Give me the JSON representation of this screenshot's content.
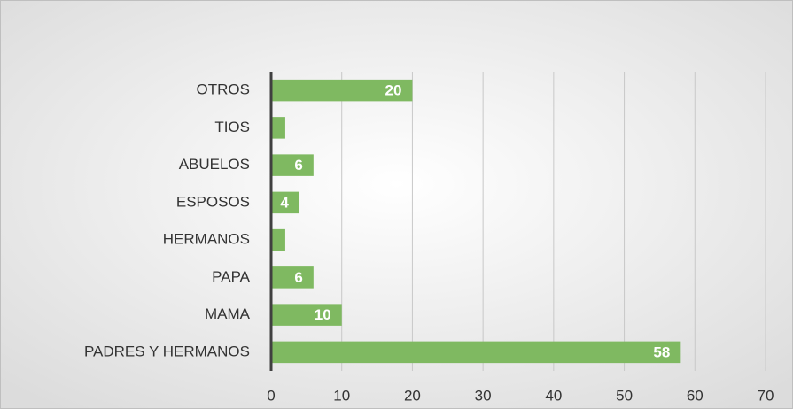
{
  "chart_data": {
    "type": "hbar",
    "categories": [
      "OTROS",
      "TIOS",
      "ABUELOS",
      "ESPOSOS",
      "HERMANOS",
      "PAPA",
      "MAMA",
      "PADRES Y HERMANOS"
    ],
    "values": [
      20,
      2,
      6,
      4,
      2,
      6,
      10,
      58
    ],
    "value_labels": [
      20,
      null,
      6,
      4,
      null,
      6,
      10,
      58
    ],
    "color": "#7fb961",
    "xlim": [
      0,
      70
    ],
    "xticks": [
      0,
      10,
      20,
      30,
      40,
      50,
      60,
      70
    ],
    "grid": true
  }
}
